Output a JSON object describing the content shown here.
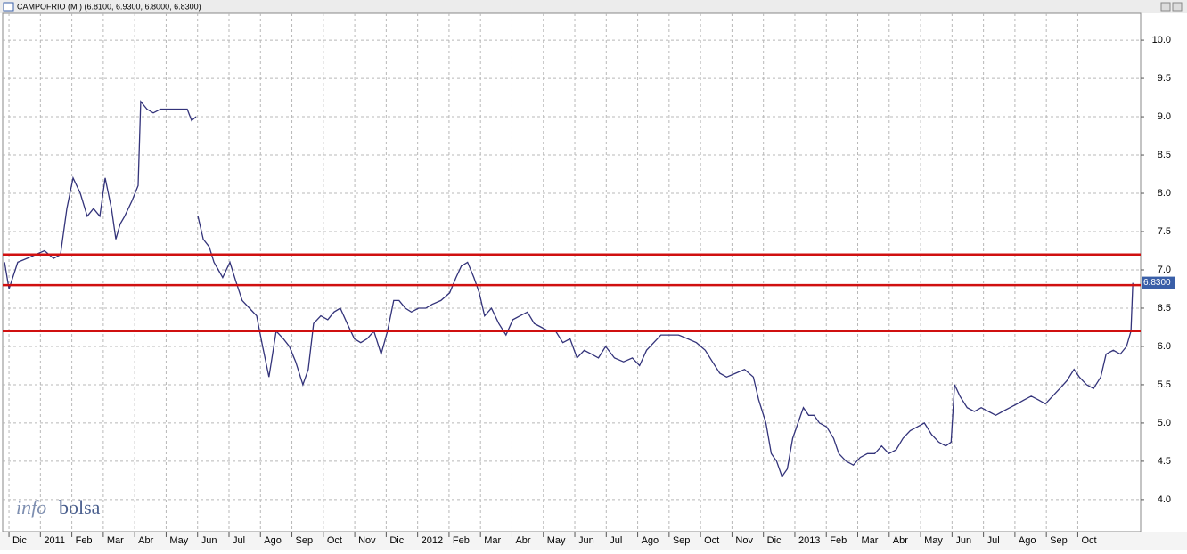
{
  "chart_data": {
    "type": "line",
    "title": "CAMPOFRIO (M ) (6.8100, 6.9300, 6.8000, 6.8300)",
    "watermark": {
      "prefix": "info",
      "suffix": "bolsa"
    },
    "color": "#33337a",
    "x": [
      -0.14,
      0,
      0.28,
      0.57,
      0.85,
      1.13,
      1.42,
      1.64,
      1.84,
      2.04,
      2.27,
      2.49,
      2.69,
      2.89,
      3.06,
      3.26,
      3.4,
      3.54,
      3.68,
      3.91,
      4.11,
      4.19,
      4.39,
      4.59,
      4.82,
      5.1,
      5.38,
      5.67,
      5.81,
      5.95,
      5.98,
      6.01,
      6.18,
      6.37,
      6.52,
      6.66,
      6.8,
      7.03,
      7.22,
      7.42,
      7.65,
      7.88,
      8.07,
      8.27,
      8.5,
      8.73,
      8.92,
      9.12,
      9.35,
      9.52,
      9.69,
      9.92,
      10.14,
      10.34,
      10.54,
      10.76,
      10.99,
      11.19,
      11.39,
      11.61,
      11.84,
      12.04,
      12.24,
      12.41,
      12.61,
      12.8,
      13.03,
      13.26,
      13.46,
      13.74,
      14.02,
      14.22,
      14.39,
      14.59,
      14.79,
      14.96,
      15.13,
      15.35,
      15.58,
      15.81,
      16.03,
      16.26,
      16.49,
      16.71,
      16.94,
      17.17,
      17.39,
      17.62,
      17.85,
      18.07,
      18.3,
      18.53,
      18.75,
      18.98,
      19.26,
      19.55,
      19.83,
      20.06,
      20.28,
      20.51,
      20.74,
      21.02,
      21.3,
      21.59,
      21.87,
      22.15,
      22.38,
      22.61,
      22.83,
      23.12,
      23.4,
      23.68,
      23.85,
      24.08,
      24.25,
      24.42,
      24.59,
      24.76,
      24.93,
      25.1,
      25.27,
      25.44,
      25.61,
      25.78,
      26.01,
      26.23,
      26.4,
      26.63,
      26.86,
      27.08,
      27.31,
      27.54,
      27.76,
      27.99,
      28.22,
      28.44,
      28.67,
      28.9,
      29.12,
      29.35,
      29.58,
      29.8,
      29.97,
      30.08,
      30.25,
      30.48,
      30.71,
      30.93,
      31.16,
      31.39,
      31.61,
      31.84,
      32.07,
      32.29,
      32.52,
      32.75,
      32.97,
      33.2,
      33.43,
      33.65,
      33.88,
      34.05,
      34.28,
      34.5,
      34.73,
      34.9,
      35.13,
      35.35,
      35.55,
      35.69,
      35.75
    ],
    "values": [
      7.1,
      6.75,
      7.1,
      7.15,
      7.2,
      7.25,
      7.15,
      7.2,
      7.8,
      8.2,
      8.0,
      7.7,
      7.8,
      7.7,
      8.2,
      7.8,
      7.4,
      7.6,
      7.7,
      7.9,
      8.1,
      9.2,
      9.1,
      9.05,
      9.1,
      9.1,
      9.1,
      9.1,
      8.95,
      9.0,
      null,
      7.7,
      7.4,
      7.3,
      7.1,
      7.0,
      6.9,
      7.1,
      6.85,
      6.6,
      6.5,
      6.4,
      6.0,
      5.6,
      6.2,
      6.1,
      6.0,
      5.8,
      5.5,
      5.7,
      6.3,
      6.4,
      6.35,
      6.45,
      6.5,
      6.3,
      6.1,
      6.05,
      6.1,
      6.2,
      5.9,
      6.2,
      6.6,
      6.6,
      6.5,
      6.45,
      6.5,
      6.5,
      6.55,
      6.6,
      6.7,
      6.9,
      7.05,
      7.1,
      6.9,
      6.7,
      6.4,
      6.5,
      6.3,
      6.15,
      6.35,
      6.4,
      6.45,
      6.3,
      6.25,
      6.2,
      6.2,
      6.05,
      6.1,
      5.85,
      5.95,
      5.9,
      5.85,
      6.0,
      5.85,
      5.8,
      5.85,
      5.75,
      5.95,
      6.05,
      6.15,
      6.15,
      6.15,
      6.1,
      6.05,
      5.95,
      5.8,
      5.65,
      5.6,
      5.65,
      5.7,
      5.6,
      5.3,
      5.0,
      4.6,
      4.5,
      4.3,
      4.4,
      4.8,
      5.0,
      5.2,
      5.1,
      5.1,
      5.0,
      4.95,
      4.8,
      4.6,
      4.5,
      4.45,
      4.55,
      4.6,
      4.6,
      4.7,
      4.6,
      4.65,
      4.8,
      4.9,
      4.95,
      5.0,
      4.85,
      4.75,
      4.7,
      4.75,
      5.5,
      5.35,
      5.2,
      5.15,
      5.2,
      5.15,
      5.1,
      5.15,
      5.2,
      5.25,
      5.3,
      5.35,
      5.3,
      5.25,
      5.35,
      5.45,
      5.55,
      5.7,
      5.6,
      5.5,
      5.45,
      5.6,
      5.9,
      5.95,
      5.9,
      6.0,
      6.2,
      6.83
    ],
    "xlim": [
      -0.2,
      36
    ],
    "xticks": [
      {
        "value": 0,
        "label": "Dic"
      },
      {
        "value": 1,
        "label": "2011"
      },
      {
        "value": 2,
        "label": "Feb"
      },
      {
        "value": 3,
        "label": "Mar"
      },
      {
        "value": 4,
        "label": "Abr"
      },
      {
        "value": 5,
        "label": "May"
      },
      {
        "value": 6,
        "label": "Jun"
      },
      {
        "value": 7,
        "label": "Jul"
      },
      {
        "value": 8,
        "label": "Ago"
      },
      {
        "value": 9,
        "label": "Sep"
      },
      {
        "value": 10,
        "label": "Oct"
      },
      {
        "value": 11,
        "label": "Nov"
      },
      {
        "value": 12,
        "label": "Dic"
      },
      {
        "value": 13,
        "label": "2012"
      },
      {
        "value": 14,
        "label": "Feb"
      },
      {
        "value": 15,
        "label": "Mar"
      },
      {
        "value": 16,
        "label": "Abr"
      },
      {
        "value": 17,
        "label": "May"
      },
      {
        "value": 18,
        "label": "Jun"
      },
      {
        "value": 19,
        "label": "Jul"
      },
      {
        "value": 20,
        "label": "Ago"
      },
      {
        "value": 21,
        "label": "Sep"
      },
      {
        "value": 22,
        "label": "Oct"
      },
      {
        "value": 23,
        "label": "Nov"
      },
      {
        "value": 24,
        "label": "Dic"
      },
      {
        "value": 25,
        "label": "2013"
      },
      {
        "value": 26,
        "label": "Feb"
      },
      {
        "value": 27,
        "label": "Mar"
      },
      {
        "value": 28,
        "label": "Abr"
      },
      {
        "value": 29,
        "label": "May"
      },
      {
        "value": 30,
        "label": "Jun"
      },
      {
        "value": 31,
        "label": "Jul"
      },
      {
        "value": 32,
        "label": "Ago"
      },
      {
        "value": 33,
        "label": "Sep"
      },
      {
        "value": 34,
        "label": "Oct"
      }
    ],
    "ylim": [
      3.58,
      10.35
    ],
    "yticks": [
      {
        "value": 4,
        "label": "4.0"
      },
      4.5,
      {
        "value": 5,
        "label": "5.0"
      },
      5.5,
      {
        "value": 6,
        "label": "6.0"
      },
      6.5,
      {
        "value": 7,
        "label": "7.0"
      },
      7.5,
      {
        "value": 8,
        "label": "8.0"
      },
      8.5,
      {
        "value": 9,
        "label": "9.0"
      },
      9.5,
      {
        "value": 10,
        "label": "10.0"
      }
    ],
    "grid": true,
    "hlines": [
      7.2,
      6.8,
      6.2
    ],
    "hline_color": "#d01010",
    "last_value": {
      "value": 6.83,
      "label": "6.8300"
    },
    "last_color": "#3a5fa8"
  }
}
